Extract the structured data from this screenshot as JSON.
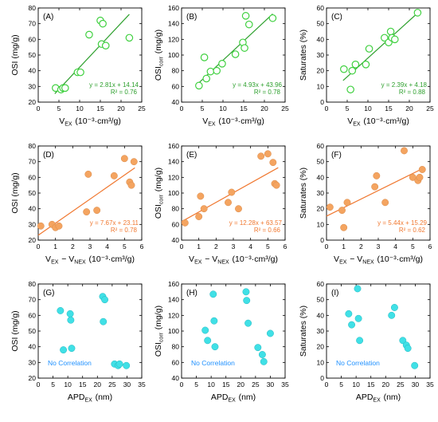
{
  "colors": {
    "green": "#3fd03f",
    "orange": "#f4a460",
    "cyan": "#40e0e6",
    "fit_green": "#2ea02e",
    "fit_orange": "#f07830",
    "note": "#1e90ff"
  },
  "chart_data": [
    {
      "type": "scatter",
      "panel": "(A)",
      "color": "green",
      "xlabel": "V_EX (10⁻³·cm³/g)",
      "ylabel": "OSI (mg/g)",
      "xlim": [
        0,
        25
      ],
      "ylim": [
        20,
        80
      ],
      "xticks": [
        0,
        5,
        10,
        15,
        20,
        25
      ],
      "yticks": [
        20,
        30,
        40,
        50,
        60,
        70,
        80
      ],
      "x": [
        4.2,
        5.5,
        6.0,
        6.5,
        9.5,
        10.2,
        12.3,
        15.0,
        15.3,
        15.6,
        16.3,
        22.0
      ],
      "y": [
        29,
        28,
        29,
        29,
        39,
        39,
        63,
        72,
        57,
        70,
        56,
        61
      ],
      "fit": {
        "slope": 2.81,
        "intercept": 14.14,
        "x_range": [
          4.0,
          22.0
        ]
      },
      "equation": "y = 2.81x + 14.14",
      "r2": "R² = 0.76"
    },
    {
      "type": "scatter",
      "panel": "(B)",
      "color": "green",
      "xlabel": "V_EX (10⁻³·cm³/g)",
      "ylabel": "OSI_corr (mg/g)",
      "xlim": [
        0,
        25
      ],
      "ylim": [
        40,
        160
      ],
      "xticks": [
        0,
        5,
        10,
        15,
        20,
        25
      ],
      "yticks": [
        40,
        60,
        80,
        100,
        120,
        140,
        160
      ],
      "x": [
        4.2,
        5.5,
        6.0,
        7.0,
        8.5,
        9.8,
        13.0,
        14.8,
        15.2,
        15.5,
        16.3,
        22.0
      ],
      "y": [
        61,
        97,
        70,
        79,
        80,
        89,
        101,
        116,
        109,
        150,
        139,
        147
      ],
      "fit": {
        "slope": 4.93,
        "intercept": 43.96,
        "x_range": [
          4.0,
          22.0
        ]
      },
      "equation": "y = 4.93x + 43.96",
      "r2": "R² = 0.78"
    },
    {
      "type": "scatter",
      "panel": "(C)",
      "color": "green",
      "xlabel": "V_EX (10⁻³·cm³/g)",
      "ylabel": "Saturates (%)",
      "xlim": [
        0,
        25
      ],
      "ylim": [
        0,
        60
      ],
      "xticks": [
        0,
        5,
        10,
        15,
        20,
        25
      ],
      "yticks": [
        0,
        10,
        20,
        30,
        40,
        50,
        60
      ],
      "x": [
        4.2,
        5.8,
        6.2,
        7.0,
        9.5,
        10.3,
        14.0,
        15.0,
        15.5,
        15.8,
        16.5,
        22.0
      ],
      "y": [
        21,
        8,
        20,
        24,
        24,
        34,
        41,
        38,
        45,
        41,
        40,
        57
      ],
      "fit": {
        "slope": 2.39,
        "intercept": 4.18,
        "x_range": [
          4.0,
          22.0
        ]
      },
      "equation": "y = 2.39x + 4.18",
      "r2": "R² = 0.88"
    },
    {
      "type": "scatter",
      "panel": "(D)",
      "color": "orange",
      "xlabel": "V_EX − V_NEX (10⁻³·cm³/g)",
      "ylabel": "OSI (mg/g)",
      "xlim": [
        0,
        6
      ],
      "ylim": [
        20,
        80
      ],
      "xticks": [
        0,
        1,
        2,
        3,
        4,
        5,
        6
      ],
      "yticks": [
        20,
        30,
        40,
        50,
        60,
        70,
        80
      ],
      "x": [
        0.15,
        0.8,
        1.0,
        1.2,
        2.8,
        2.9,
        3.4,
        4.4,
        5.0,
        5.3,
        5.4,
        5.55
      ],
      "y": [
        29,
        30,
        28,
        29,
        38,
        62,
        39,
        61,
        72,
        57,
        55,
        70
      ],
      "fit": {
        "slope": 7.67,
        "intercept": 23.11,
        "x_range": [
          0.0,
          5.6
        ]
      },
      "equation": "y = 7.67x + 23.11",
      "r2": "R² = 0.78"
    },
    {
      "type": "scatter",
      "panel": "(E)",
      "color": "orange",
      "xlabel": "V_EX − V_NEX (10⁻³·cm³/g)",
      "ylabel": "OSI_corr (mg/g)",
      "xlim": [
        0,
        6
      ],
      "ylim": [
        40,
        160
      ],
      "xticks": [
        0,
        1,
        2,
        3,
        4,
        5,
        6
      ],
      "yticks": [
        40,
        60,
        80,
        100,
        120,
        140,
        160
      ],
      "x": [
        0.2,
        1.0,
        1.1,
        1.3,
        2.7,
        2.9,
        3.3,
        4.6,
        5.0,
        5.3,
        5.4,
        5.5
      ],
      "y": [
        62,
        70,
        96,
        80,
        88,
        101,
        80,
        147,
        150,
        139,
        112,
        110
      ],
      "fit": {
        "slope": 12.28,
        "intercept": 63.57,
        "x_range": [
          0.0,
          5.6
        ]
      },
      "equation": "y = 12.28x + 63.57",
      "r2": "R² = 0.66"
    },
    {
      "type": "scatter",
      "panel": "(F)",
      "color": "orange",
      "xlabel": "V_EX − V_NEX (10⁻³·cm³/g)",
      "ylabel": "Saturates (%)",
      "xlim": [
        0,
        6
      ],
      "ylim": [
        0,
        60
      ],
      "xticks": [
        0,
        1,
        2,
        3,
        4,
        5,
        6
      ],
      "yticks": [
        0,
        10,
        20,
        30,
        40,
        50,
        60
      ],
      "x": [
        0.2,
        0.9,
        1.0,
        1.2,
        2.8,
        2.9,
        3.4,
        4.5,
        5.0,
        5.3,
        5.4,
        5.55
      ],
      "y": [
        21,
        19,
        8,
        24,
        34,
        41,
        24,
        57,
        40,
        38,
        40,
        45
      ],
      "fit": {
        "slope": 5.44,
        "intercept": 15.29,
        "x_range": [
          0.0,
          5.6
        ]
      },
      "equation": "y = 5.44x + 15.29",
      "r2": "R² = 0.62"
    },
    {
      "type": "scatter",
      "panel": "(G)",
      "color": "cyan",
      "xlabel": "APD_EX (nm)",
      "ylabel": "OSI (mg/g)",
      "xlim": [
        0,
        35
      ],
      "ylim": [
        20,
        80
      ],
      "xticks": [
        0,
        5,
        10,
        15,
        20,
        25,
        30,
        35
      ],
      "yticks": [
        20,
        30,
        40,
        50,
        60,
        70,
        80
      ],
      "x": [
        7.5,
        8.5,
        10.8,
        11.0,
        11.3,
        21.8,
        22.0,
        22.5,
        25.8,
        27.0,
        27.5,
        29.8
      ],
      "y": [
        63,
        38,
        61,
        57,
        39,
        72,
        56,
        70,
        29,
        28,
        29,
        28
      ],
      "note": "No Correlation"
    },
    {
      "type": "scatter",
      "panel": "(H)",
      "color": "cyan",
      "xlabel": "APD_EX (nm)",
      "ylabel": "OSI_corr (mg/g)",
      "xlim": [
        0,
        35
      ],
      "ylim": [
        40,
        160
      ],
      "xticks": [
        0,
        5,
        10,
        15,
        20,
        25,
        30,
        35
      ],
      "yticks": [
        40,
        60,
        80,
        100,
        120,
        140,
        160
      ],
      "x": [
        8.0,
        8.8,
        10.7,
        11.0,
        11.3,
        21.8,
        22.0,
        22.5,
        25.8,
        27.3,
        27.8,
        30.0
      ],
      "y": [
        101,
        88,
        147,
        113,
        80,
        150,
        139,
        110,
        79,
        70,
        61,
        97
      ],
      "note": "No Correlation"
    },
    {
      "type": "scatter",
      "panel": "(I)",
      "color": "cyan",
      "xlabel": "APD_EX (nm)",
      "ylabel": "Saturates (%)",
      "xlim": [
        0,
        35
      ],
      "ylim": [
        0,
        60
      ],
      "xticks": [
        0,
        5,
        10,
        15,
        20,
        25,
        30,
        35
      ],
      "yticks": [
        0,
        10,
        20,
        30,
        40,
        50,
        60
      ],
      "x": [
        7.5,
        8.5,
        10.5,
        10.8,
        11.2,
        22.0,
        23.0,
        25.8,
        27.0,
        27.5,
        29.8
      ],
      "y": [
        41,
        34,
        57,
        38,
        24,
        40,
        45,
        24,
        21,
        19,
        8
      ],
      "note": "No Correlation"
    }
  ]
}
